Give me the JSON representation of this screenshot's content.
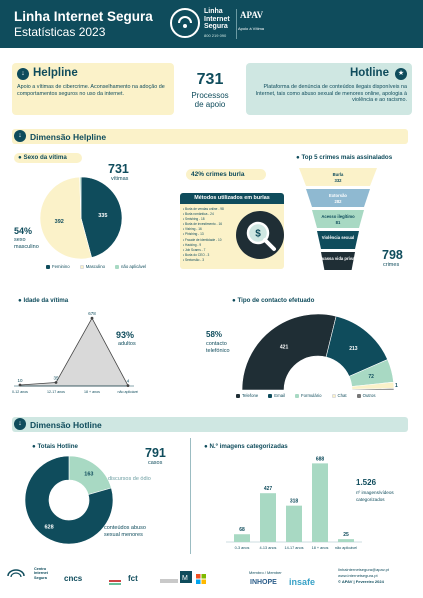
{
  "header": {
    "title": "Linha Internet Segura",
    "subtitle": "Estatísticas 2023",
    "logo_lines": [
      "Linha",
      "Internet",
      "Segura"
    ],
    "logo_phone": "800 219 090",
    "apav_name": "APAV",
    "apav_tagline": "Apoio à Vítima"
  },
  "helpline": {
    "title": "Helpline",
    "description": "Apoio a vítimas de cibercrime. Aconselhamento na adoção de comportamentos seguros no uso da internet."
  },
  "center_stat": {
    "value": "731",
    "label_line1": "Processos",
    "label_line2": "de apoio"
  },
  "hotline": {
    "title": "Hotline",
    "description": "Plataforma de denúncia de conteúdos ilegais disponíveis na Internet, tais como abuso sexual de menores online, apologia à violência e ao racismo."
  },
  "section_helpline": {
    "title": "Dimensão Helpline"
  },
  "section_hotline": {
    "title": "Dimensão Hotline"
  },
  "victim_sex": {
    "title": "Sexo da vítima",
    "total_value": "731",
    "total_label": "vítimas",
    "pct_value": "54%",
    "pct_label_line1": "sexo",
    "pct_label_line2": "masculino",
    "legend": [
      "Feminino",
      "Masculino",
      "não aplicável"
    ]
  },
  "top5": {
    "title": "Top 5 crimes mais assinalados",
    "burla_pct": "42% crimes burla",
    "methods_title": "Métodos utilizados em burlas",
    "methods": [
      "Burla de vendas online - 98",
      "Burla romântica - 24",
      "Smishing - 18",
      "Burla de investimento - 16",
      "Vishing - 16",
      "Phishing - 13",
      "Fraude de identidade - 10",
      "Hacking - 9",
      "Job Scams - 7",
      "Burla do CEO - 3",
      "Sextorsão - 3"
    ],
    "funnel_labels": [
      "Burla",
      "Extorsão",
      "Acesso ilegítimo",
      "Violência sexual",
      "Devassa vida privada"
    ],
    "funnel_values": [
      "332",
      "282",
      "81",
      "",
      ""
    ],
    "total_value": "798",
    "total_label": "crimes"
  },
  "victim_age": {
    "title": "Idade da vítima",
    "pct_value": "93%",
    "pct_label": "adultos"
  },
  "contact_type": {
    "title": "Tipo de contacto efetuado",
    "pct_value": "58%",
    "pct_label_line1": "contacto",
    "pct_label_line2": "telefónico",
    "legend": [
      "Telefone",
      "Email",
      "Formulário",
      "Chat",
      "Outros"
    ]
  },
  "hotline_totals": {
    "title": "Totais Hotline",
    "total_value": "791",
    "total_label": "casos",
    "slice_label_1": "discursos de ódio",
    "slice_label_2_line1": "conteúdos abuso",
    "slice_label_2_line2": "sexual menores"
  },
  "images": {
    "title": "N.º imagens categorizadas",
    "total_value": "1.526",
    "total_label_line1": "nº imagens/vídeos",
    "total_label_line2": "categorizados"
  },
  "footer": {
    "partner1": "Centro Internet Segura",
    "member_label": "Membro / Member",
    "inhope": "INHOPE",
    "insafe": "insafe",
    "url1": "linhainternetsegura@apav.pt",
    "url2": "www.internetsegura.pt",
    "copyright": "© APAV | Fevereiro 2024"
  },
  "colors": {
    "teal": "#0f4c5c",
    "yellow": "#fbf2c9",
    "mint": "#cfe7e2",
    "green": "#a8d9c3",
    "grey": "#c8c8c8"
  },
  "chart_data": [
    {
      "type": "pie",
      "title": "Sexo da vítima",
      "categories": [
        "Feminino",
        "Masculino",
        "não aplicável"
      ],
      "values": [
        335,
        392,
        4
      ]
    },
    {
      "type": "area",
      "title": "Idade da vítima",
      "categories": [
        "0-12 anos",
        "12-17 anos",
        "18 + anos",
        "não aplicável"
      ],
      "values": [
        10,
        35,
        678,
        4
      ]
    },
    {
      "type": "pie",
      "title": "Tipo de contacto efetuado",
      "categories": [
        "Telefone",
        "Email",
        "Formulário",
        "Chat",
        "Outros"
      ],
      "values": [
        421,
        213,
        72,
        19,
        5
      ]
    },
    {
      "type": "pie",
      "title": "Totais Hotline",
      "categories": [
        "discursos de ódio",
        "conteúdos abuso sexual menores"
      ],
      "values": [
        163,
        628
      ]
    },
    {
      "type": "bar",
      "title": "N.º imagens categorizadas",
      "categories": [
        "0-3 anos",
        "4-13 anos",
        "14-17 anos",
        "18 + anos",
        "não aplicável"
      ],
      "values": [
        68,
        427,
        318,
        688,
        25
      ]
    }
  ]
}
